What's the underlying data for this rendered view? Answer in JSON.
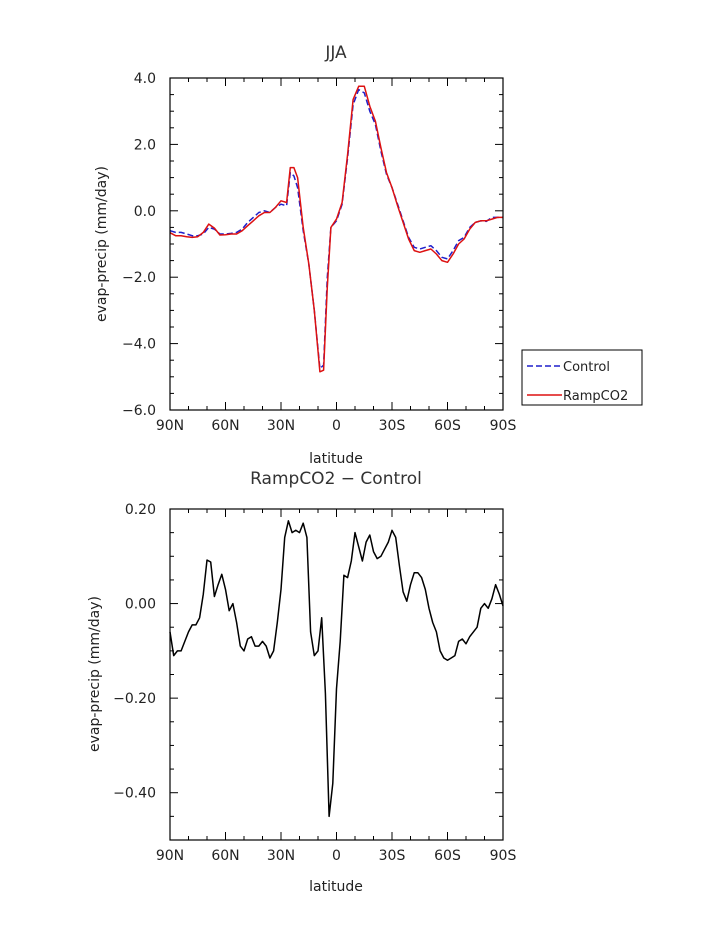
{
  "chart_data": [
    {
      "type": "line",
      "title": "JJA",
      "xlabel": "latitude",
      "ylabel": "evap-precip (mm/day)",
      "xlim": [
        90,
        -90
      ],
      "ylim": [
        -6.0,
        4.0
      ],
      "x_ticks": [
        90,
        60,
        30,
        0,
        -30,
        -60,
        -90
      ],
      "x_tick_labels": [
        "90N",
        "60N",
        "30N",
        "0",
        "30S",
        "60S",
        "90S"
      ],
      "y_ticks": [
        4.0,
        2.0,
        0.0,
        -2.0,
        -4.0,
        -6.0
      ],
      "y_tick_labels": [
        "4.0",
        "2.0",
        "0.0",
        "−2.0",
        "−4.0",
        "−6.0"
      ],
      "legend_position": "right",
      "series": [
        {
          "name": "Control",
          "color": "#1f1fcc",
          "dash": "dashed",
          "x": [
            90,
            87,
            84,
            81,
            78,
            75,
            72,
            69,
            66,
            63,
            60,
            57,
            54,
            51,
            48,
            45,
            42,
            39,
            36,
            33,
            30,
            27,
            25,
            23,
            21,
            18,
            15,
            12,
            9,
            7,
            5,
            3,
            0,
            -3,
            -6,
            -9,
            -12,
            -15,
            -18,
            -21,
            -24,
            -27,
            -30,
            -33,
            -36,
            -39,
            -42,
            -45,
            -48,
            -51,
            -54,
            -57,
            -60,
            -63,
            -66,
            -69,
            -72,
            -75,
            -78,
            -81,
            -84,
            -87,
            -90
          ],
          "y": [
            -0.6,
            -0.65,
            -0.65,
            -0.7,
            -0.75,
            -0.75,
            -0.7,
            -0.5,
            -0.55,
            -0.7,
            -0.7,
            -0.68,
            -0.65,
            -0.55,
            -0.35,
            -0.2,
            -0.05,
            0.0,
            -0.05,
            0.1,
            0.2,
            0.15,
            1.15,
            1.05,
            0.7,
            -0.6,
            -1.6,
            -3.0,
            -4.75,
            -4.65,
            -2.0,
            -0.5,
            -0.3,
            0.2,
            1.6,
            3.2,
            3.65,
            3.55,
            3.0,
            2.6,
            1.8,
            1.1,
            0.7,
            0.2,
            -0.3,
            -0.8,
            -1.1,
            -1.15,
            -1.1,
            -1.05,
            -1.2,
            -1.4,
            -1.45,
            -1.2,
            -0.9,
            -0.8,
            -0.5,
            -0.35,
            -0.3,
            -0.32,
            -0.2,
            -0.2,
            -0.2
          ]
        },
        {
          "name": "RampCO2",
          "color": "#dd1111",
          "dash": "solid",
          "x": [
            90,
            87,
            84,
            81,
            78,
            75,
            72,
            69,
            66,
            63,
            60,
            57,
            54,
            51,
            48,
            45,
            42,
            39,
            36,
            33,
            30,
            27,
            25,
            23,
            21,
            18,
            15,
            12,
            9,
            7,
            5,
            3,
            0,
            -3,
            -6,
            -9,
            -12,
            -15,
            -18,
            -21,
            -24,
            -27,
            -30,
            -33,
            -36,
            -39,
            -42,
            -45,
            -48,
            -51,
            -54,
            -57,
            -60,
            -63,
            -66,
            -69,
            -72,
            -75,
            -78,
            -81,
            -84,
            -87,
            -90
          ],
          "y": [
            -0.66,
            -0.75,
            -0.75,
            -0.78,
            -0.8,
            -0.78,
            -0.65,
            -0.4,
            -0.52,
            -0.73,
            -0.72,
            -0.7,
            -0.7,
            -0.6,
            -0.45,
            -0.3,
            -0.15,
            -0.05,
            -0.05,
            0.1,
            0.3,
            0.25,
            1.3,
            1.3,
            1.0,
            -0.5,
            -1.6,
            -3.0,
            -4.85,
            -4.8,
            -2.3,
            -0.5,
            -0.25,
            0.25,
            1.7,
            3.35,
            3.75,
            3.75,
            3.15,
            2.7,
            1.9,
            1.15,
            0.7,
            0.15,
            -0.35,
            -0.85,
            -1.2,
            -1.25,
            -1.2,
            -1.15,
            -1.3,
            -1.5,
            -1.55,
            -1.3,
            -1.0,
            -0.85,
            -0.55,
            -0.35,
            -0.3,
            -0.3,
            -0.25,
            -0.2,
            -0.2
          ]
        }
      ]
    },
    {
      "type": "line",
      "title": "RampCO2 − Control",
      "xlabel": "latitude",
      "ylabel": "evap-precip (mm/day)",
      "xlim": [
        90,
        -90
      ],
      "ylim": [
        -0.5,
        0.2
      ],
      "x_ticks": [
        90,
        60,
        30,
        0,
        -30,
        -60,
        -90
      ],
      "x_tick_labels": [
        "90N",
        "60N",
        "30N",
        "0",
        "30S",
        "60S",
        "90S"
      ],
      "y_ticks": [
        0.2,
        0.0,
        -0.2,
        -0.4
      ],
      "y_tick_labels": [
        "0.20",
        "0.00",
        "−0.20",
        "−0.40"
      ],
      "series": [
        {
          "name": "",
          "color": "#000000",
          "dash": "solid",
          "x": [
            90,
            88,
            86,
            84,
            82,
            80,
            78,
            76,
            74,
            72,
            70,
            68,
            66,
            64,
            62,
            60,
            58,
            56,
            54,
            52,
            50,
            48,
            46,
            44,
            42,
            40,
            38,
            36,
            34,
            32,
            30,
            28,
            26,
            24,
            22,
            20,
            18,
            16,
            14,
            12,
            10,
            8,
            6,
            4,
            2,
            0,
            -2,
            -4,
            -6,
            -8,
            -10,
            -12,
            -14,
            -16,
            -18,
            -20,
            -22,
            -24,
            -26,
            -28,
            -30,
            -32,
            -34,
            -36,
            -38,
            -40,
            -42,
            -44,
            -46,
            -48,
            -50,
            -52,
            -54,
            -56,
            -58,
            -60,
            -62,
            -64,
            -66,
            -68,
            -70,
            -72,
            -74,
            -76,
            -78,
            -80,
            -82,
            -84,
            -86,
            -88,
            -90
          ],
          "y": [
            -0.06,
            -0.11,
            -0.1,
            -0.1,
            -0.08,
            -0.06,
            -0.045,
            -0.045,
            -0.03,
            0.02,
            0.092,
            0.088,
            0.015,
            0.04,
            0.062,
            0.03,
            -0.015,
            0.0,
            -0.04,
            -0.09,
            -0.1,
            -0.075,
            -0.07,
            -0.09,
            -0.09,
            -0.08,
            -0.09,
            -0.115,
            -0.1,
            -0.04,
            0.03,
            0.14,
            0.175,
            0.15,
            0.155,
            0.15,
            0.17,
            0.14,
            -0.06,
            -0.11,
            -0.1,
            -0.03,
            -0.19,
            -0.45,
            -0.38,
            -0.18,
            -0.08,
            0.06,
            0.055,
            0.09,
            0.15,
            0.12,
            0.09,
            0.13,
            0.145,
            0.11,
            0.095,
            0.1,
            0.115,
            0.13,
            0.155,
            0.14,
            0.08,
            0.025,
            0.005,
            0.04,
            0.065,
            0.065,
            0.055,
            0.03,
            -0.01,
            -0.04,
            -0.06,
            -0.1,
            -0.115,
            -0.12,
            -0.115,
            -0.11,
            -0.08,
            -0.075,
            -0.085,
            -0.07,
            -0.06,
            -0.05,
            -0.01,
            0.0,
            -0.01,
            0.01,
            0.04,
            0.02,
            -0.005
          ]
        }
      ]
    }
  ]
}
